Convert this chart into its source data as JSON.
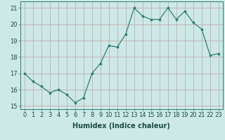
{
  "x": [
    0,
    1,
    2,
    3,
    4,
    5,
    6,
    7,
    8,
    9,
    10,
    11,
    12,
    13,
    14,
    15,
    16,
    17,
    18,
    19,
    20,
    21,
    22,
    23
  ],
  "y": [
    17.0,
    16.5,
    16.2,
    15.8,
    16.0,
    15.7,
    15.2,
    15.5,
    17.0,
    17.6,
    18.7,
    18.6,
    19.4,
    21.0,
    20.5,
    20.3,
    20.3,
    21.0,
    20.3,
    20.8,
    20.1,
    19.7,
    18.1,
    18.2
  ],
  "bg_color": "#cce9e7",
  "grid_color": "#c4a0a0",
  "line_color": "#2e7d6e",
  "marker_color": "#2e7d6e",
  "xlabel": "Humidex (Indice chaleur)",
  "ylim": [
    14.8,
    21.4
  ],
  "xlim": [
    -0.5,
    23.5
  ],
  "yticks": [
    15,
    16,
    17,
    18,
    19,
    20,
    21
  ],
  "xticks": [
    0,
    1,
    2,
    3,
    4,
    5,
    6,
    7,
    8,
    9,
    10,
    11,
    12,
    13,
    14,
    15,
    16,
    17,
    18,
    19,
    20,
    21,
    22,
    23
  ],
  "axis_fontsize": 6,
  "label_fontsize": 7
}
